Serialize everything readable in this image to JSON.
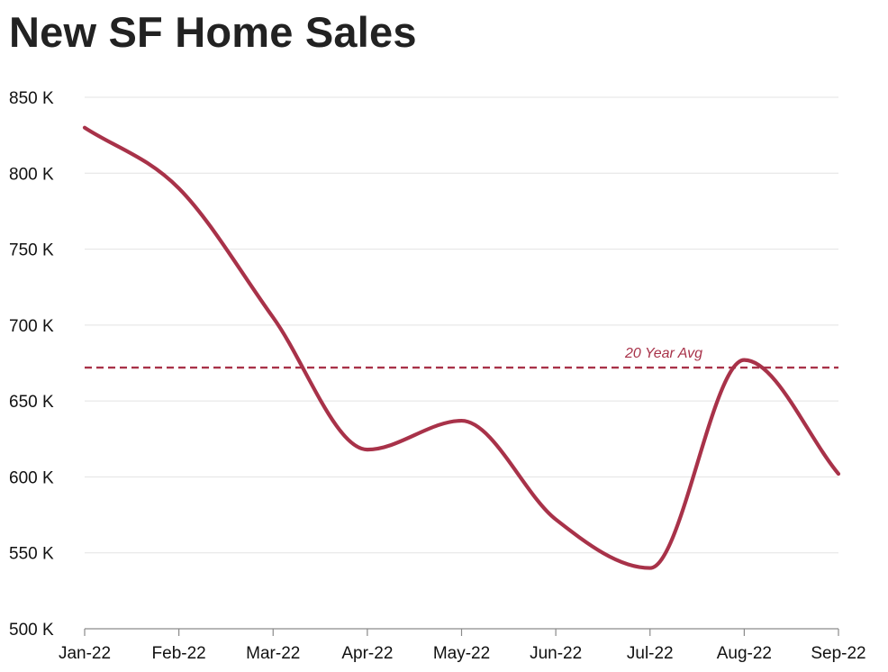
{
  "chart_data": {
    "type": "line",
    "title": "New SF Home Sales",
    "xlabel": "",
    "ylabel": "",
    "categories": [
      "Jan-22",
      "Feb-22",
      "Mar-22",
      "Apr-22",
      "May-22",
      "Jun-22",
      "Jul-22",
      "Aug-22",
      "Sep-22"
    ],
    "y_tick_labels": [
      "500 K",
      "550 K",
      "600 K",
      "650 K",
      "700 K",
      "750 K",
      "800 K",
      "850 K"
    ],
    "ylim": [
      500000,
      850000
    ],
    "grid": "horizontal",
    "series": [
      {
        "values": [
          830000,
          790000,
          705000,
          618000,
          637000,
          572000,
          540000,
          677000,
          602000
        ],
        "color": "#a83249"
      }
    ],
    "reference_line": {
      "label": "20 Year Avg",
      "value": 672000,
      "style": "dashed",
      "color": "#a83249"
    }
  }
}
